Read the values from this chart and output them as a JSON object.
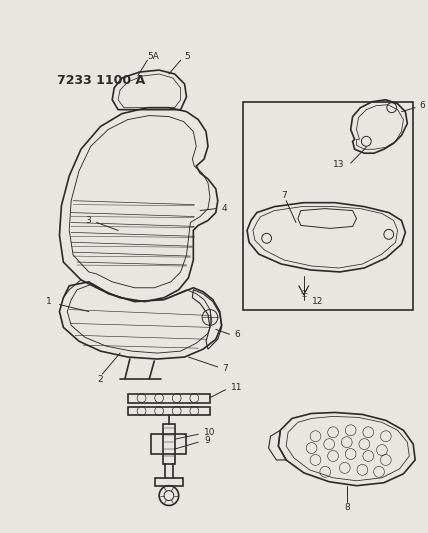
{
  "title": "7233 1100 A",
  "bg_color": "#e8e6e0",
  "line_color": "#2a2a2a",
  "figsize": [
    4.28,
    5.33
  ],
  "dpi": 100
}
